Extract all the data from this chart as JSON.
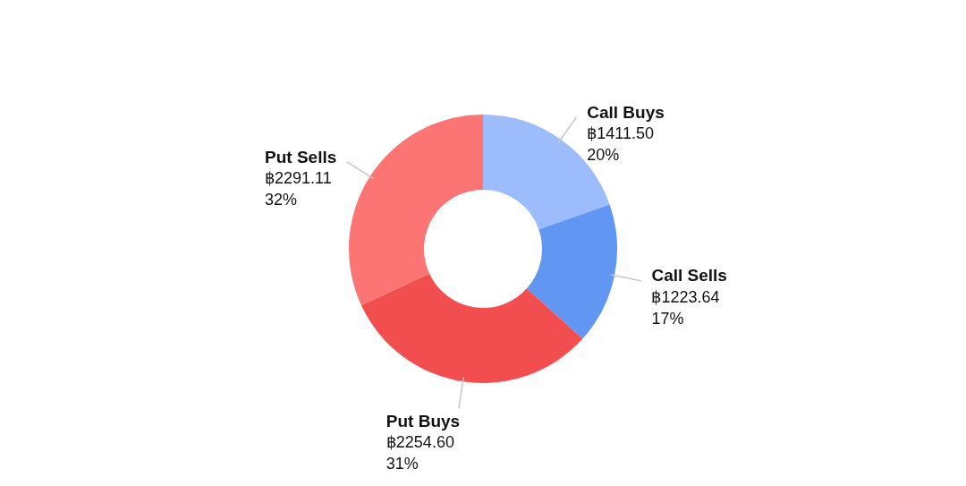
{
  "chart_data": {
    "type": "donut",
    "categories": [
      "Call Buys",
      "Call Sells",
      "Put Buys",
      "Put Sells"
    ],
    "values": [
      1411.5,
      1223.64,
      2254.6,
      2291.11
    ],
    "colors": [
      "#9dbcfc",
      "#6196f3",
      "#f24e50",
      "#fc7474"
    ],
    "value_labels": [
      "฿1411.50\n20%",
      "฿1223.64\n17%",
      "฿2254.60\n31%",
      "฿2291.11\n32%"
    ],
    "legend": false
  }
}
